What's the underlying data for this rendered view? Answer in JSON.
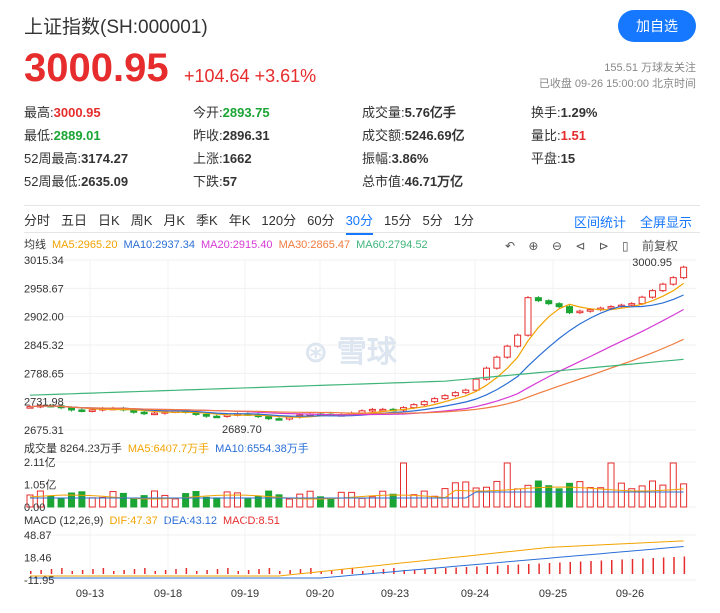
{
  "header": {
    "title": "上证指数(SH:000001)",
    "follow_label": "加自选",
    "price": "3000.95",
    "change": "+104.64 +3.61%",
    "followers": "155.51 万球友关注",
    "status": "已收盘 09-26 15:00:00 北京时间"
  },
  "stats": [
    [
      {
        "k": "最高:",
        "v": "3000.95",
        "c": "red"
      },
      {
        "k": "今开:",
        "v": "2893.75",
        "c": "green"
      },
      {
        "k": "成交量:",
        "v": "5.76亿手",
        "c": ""
      },
      {
        "k": "换手:",
        "v": "1.29%",
        "c": ""
      }
    ],
    [
      {
        "k": "最低:",
        "v": "2889.01",
        "c": "green"
      },
      {
        "k": "昨收:",
        "v": "2896.31",
        "c": ""
      },
      {
        "k": "成交额:",
        "v": "5246.69亿",
        "c": ""
      },
      {
        "k": "量比:",
        "v": "1.51",
        "c": "red"
      }
    ],
    [
      {
        "k": "52周最高:",
        "v": "3174.27",
        "c": ""
      },
      {
        "k": "上涨:",
        "v": "1662",
        "c": ""
      },
      {
        "k": "振幅:",
        "v": "3.86%",
        "c": ""
      },
      {
        "k": "平盘:",
        "v": "15",
        "c": ""
      }
    ],
    [
      {
        "k": "52周最低:",
        "v": "2635.09",
        "c": ""
      },
      {
        "k": "下跌:",
        "v": "57",
        "c": ""
      },
      {
        "k": "总市值:",
        "v": "46.71万亿",
        "c": ""
      },
      {
        "k": "",
        "v": "",
        "c": ""
      }
    ]
  ],
  "periods": [
    "分时",
    "五日",
    "日K",
    "周K",
    "月K",
    "季K",
    "年K",
    "120分",
    "60分",
    "30分",
    "15分",
    "5分",
    "1分"
  ],
  "active_period": "30分",
  "period_links": [
    "区间统计",
    "全屏显示"
  ],
  "toolbar": {
    "fq": "前复权"
  },
  "ma_legend": {
    "label": "均线",
    "items": [
      {
        "t": "MA5:2965.20",
        "color": "#f2a300"
      },
      {
        "t": "MA10:2937.34",
        "color": "#2a6fd6"
      },
      {
        "t": "MA20:2915.40",
        "color": "#d63ad6"
      },
      {
        "t": "MA30:2865.47",
        "color": "#f07b3f"
      },
      {
        "t": "MA60:2794.52",
        "color": "#3fb57a"
      }
    ]
  },
  "vol_legend": {
    "label": "成交量 8264.23万手",
    "items": [
      {
        "t": "MA5:6407.7万手",
        "color": "#f2a300"
      },
      {
        "t": "MA10:6554.38万手",
        "color": "#2a6fd6"
      }
    ]
  },
  "macd_legend": {
    "label": "MACD (12,26,9)",
    "items": [
      {
        "t": "DIF:47.37",
        "color": "#f2a300"
      },
      {
        "t": "DEA:43.12",
        "color": "#2a6fd6"
      },
      {
        "t": "MACD:8.51",
        "color": "#e62c2c"
      }
    ]
  },
  "chart_data": {
    "type": "candlestick",
    "price_ticks": [
      "3015.34",
      "2958.67",
      "2902.00",
      "2845.32",
      "2788.65",
      "2731.98",
      "2675.31"
    ],
    "price_range": [
      2675.31,
      3015.34
    ],
    "vol_ticks": [
      "2.11亿",
      "1.05亿",
      "0.00"
    ],
    "macd_ticks": [
      "48.87",
      "18.46",
      "-11.95"
    ],
    "x_labels": [
      "09-13",
      "09-18",
      "09-19",
      "09-20",
      "09-23",
      "09-24",
      "09-25",
      "09-26"
    ],
    "annotations": {
      "high": "3000.95",
      "low": "2689.70"
    },
    "watermark": "雪球"
  }
}
